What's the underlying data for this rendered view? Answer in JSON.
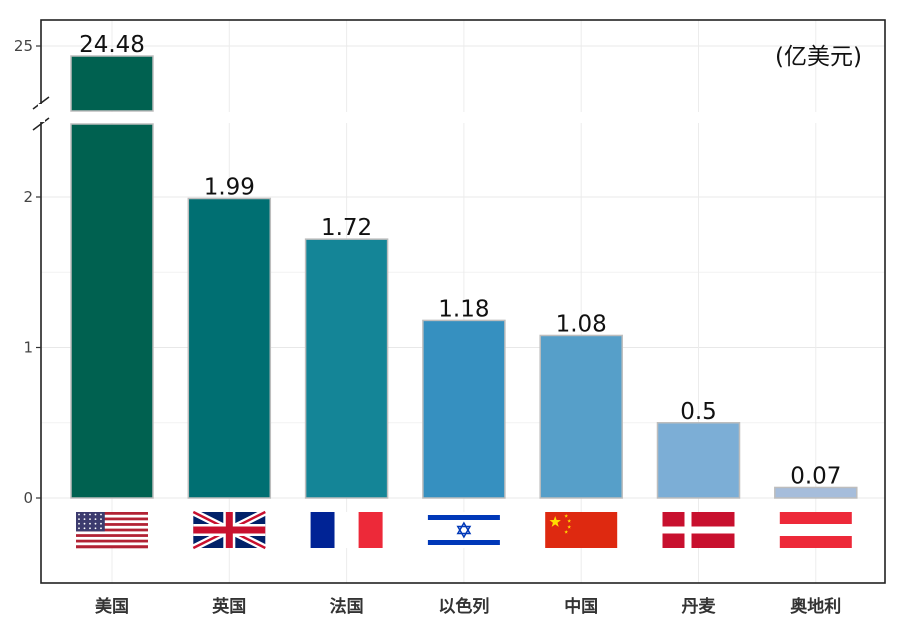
{
  "chart_data": {
    "type": "bar",
    "categories": [
      "美国",
      "英国",
      "法国",
      "以色列",
      "中国",
      "丹麦",
      "奥地利"
    ],
    "values": [
      24.48,
      1.99,
      1.72,
      1.18,
      1.08,
      0.5,
      0.07
    ],
    "value_labels": [
      "24.48",
      "1.99",
      "1.72",
      "1.18",
      "1.08",
      "0.5",
      "0.07"
    ],
    "bar_colors": [
      "#006150",
      "#006f72",
      "#148597",
      "#3690c0",
      "#569fc9",
      "#7caed6",
      "#a6bddb"
    ],
    "flags": [
      "us-flag-icon",
      "uk-flag-icon",
      "france-flag-icon",
      "israel-flag-icon",
      "china-flag-icon",
      "denmark-flag-icon",
      "austria-flag-icon"
    ],
    "unit": "(亿美元)",
    "ylim_lower": [
      0,
      2.5
    ],
    "ylim_upper_tick": "25",
    "y_ticks": [
      "0",
      "1",
      "2"
    ],
    "axis_break": true,
    "grid": true
  }
}
